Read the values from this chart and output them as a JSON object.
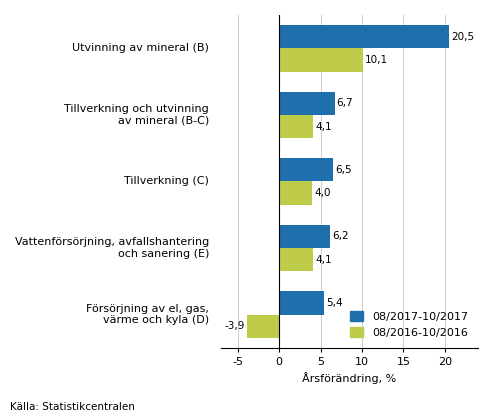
{
  "categories": [
    "Utvinning av mineral (B)",
    "Tillverkning och utvinning\nav mineral (B-C)",
    "Tillverkning (C)",
    "Vattenförsörjning, avfallshantering\noch sanering (E)",
    "Försörjning av el, gas,\nvärme och kyla (D)"
  ],
  "series1_values": [
    20.5,
    6.7,
    6.5,
    6.2,
    5.4
  ],
  "series2_values": [
    10.1,
    4.1,
    4.0,
    4.1,
    -3.9
  ],
  "series1_color": "#1f6fad",
  "series2_color": "#bfcc4a",
  "series1_label": "08/2017-10/2017",
  "series2_label": "08/2016-10/2016",
  "xlabel": "Årsförändring, %",
  "xlim": [
    -7,
    24
  ],
  "xticks": [
    -5,
    0,
    5,
    10,
    15,
    20
  ],
  "source": "Källa: Statistikcentralen",
  "bar_height": 0.35,
  "background_color": "#ffffff",
  "label_fontsize": 8.0,
  "value_fontsize": 7.5
}
